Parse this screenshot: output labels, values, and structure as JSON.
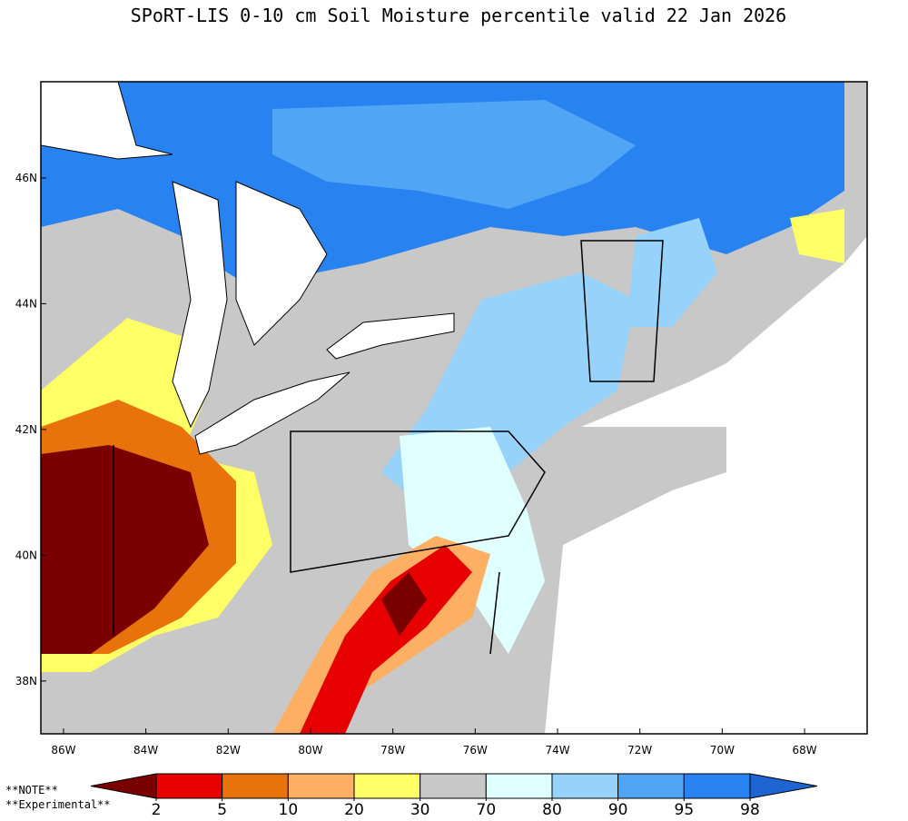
{
  "title": "SPoRT-LIS 0-10 cm Soil Moisture percentile valid 22 Jan 2026",
  "map": {
    "xlim": [
      -86.55,
      -66.48
    ],
    "ylim": [
      37.16,
      47.53
    ],
    "xticks": [
      {
        "value": -86,
        "label": "86W"
      },
      {
        "value": -84,
        "label": "84W"
      },
      {
        "value": -82,
        "label": "82W"
      },
      {
        "value": -80,
        "label": "80W"
      },
      {
        "value": -78,
        "label": "78W"
      },
      {
        "value": -76,
        "label": "76W"
      },
      {
        "value": -74,
        "label": "74W"
      },
      {
        "value": -72,
        "label": "72W"
      },
      {
        "value": -70,
        "label": "70W"
      },
      {
        "value": -68,
        "label": "68W"
      }
    ],
    "yticks": [
      {
        "value": 38,
        "label": "38N"
      },
      {
        "value": 40,
        "label": "40N"
      },
      {
        "value": 42,
        "label": "42N"
      },
      {
        "value": 44,
        "label": "44N"
      },
      {
        "value": 46,
        "label": "46N"
      }
    ]
  },
  "colorbar": {
    "ticks": [
      2,
      5,
      10,
      20,
      30,
      70,
      80,
      90,
      95,
      98
    ],
    "colors": [
      "#7a0000",
      "#e60000",
      "#e8730c",
      "#fdb063",
      "#ffff66",
      "#c8c8c8",
      "#e0ffff",
      "#96d2fa",
      "#50a5f5",
      "#2882f0",
      "#1e64d2"
    ]
  },
  "notes": [
    "**NOTE**",
    "**Experimental**"
  ]
}
